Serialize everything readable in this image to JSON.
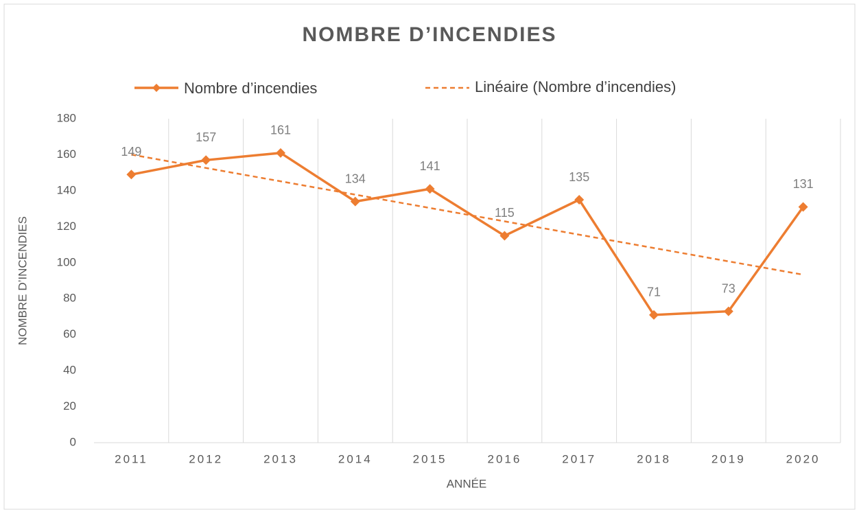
{
  "chart_data": {
    "type": "line",
    "title": "NOMBRE D’INCENDIES",
    "x_label": "ANNÉE",
    "y_label": "NOMBRE D’INCENDIES",
    "categories": [
      "2011",
      "2012",
      "2013",
      "2014",
      "2015",
      "2016",
      "2017",
      "2018",
      "2019",
      "2020"
    ],
    "series": [
      {
        "name": "Nombre d’incendies",
        "color": "#ed7d31",
        "values": [
          149,
          157,
          161,
          134,
          141,
          115,
          135,
          71,
          73,
          131
        ]
      }
    ],
    "trendline": {
      "name": "Linéaire (Nombre d’incendies)",
      "type": "linear",
      "color": "#ed7d31"
    },
    "ylim": [
      0,
      180
    ],
    "yticks": [
      0,
      20,
      40,
      60,
      80,
      100,
      120,
      140,
      160,
      180
    ],
    "grid": "vertical",
    "legend": "top",
    "data_labels": true
  }
}
